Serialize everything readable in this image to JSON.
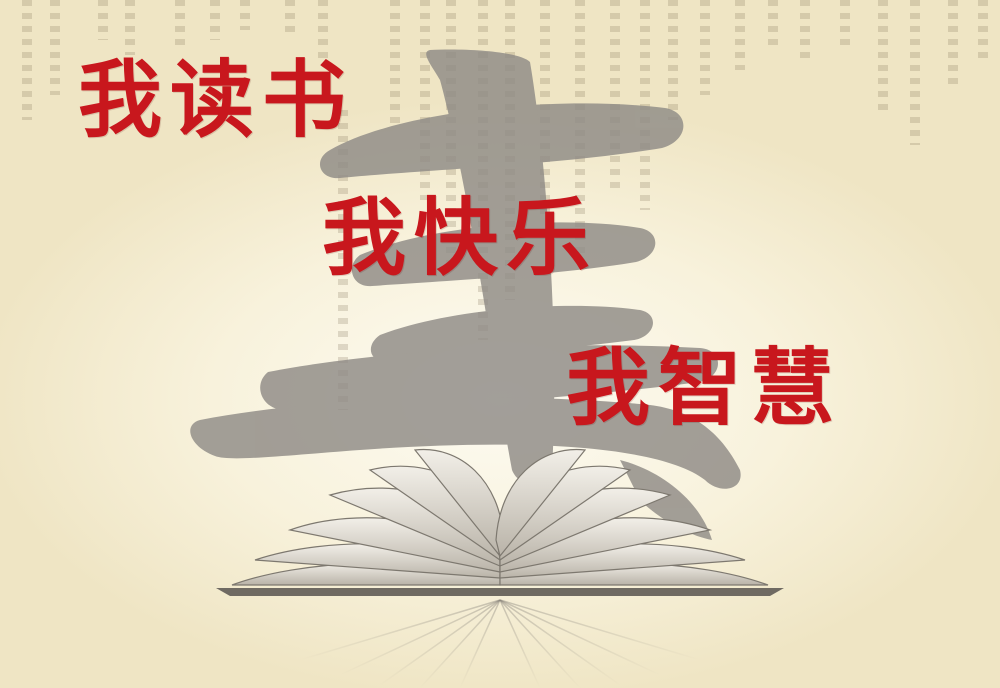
{
  "slogan": {
    "line1": "我读书",
    "line2": "我快乐",
    "line3": "我智慧"
  },
  "colors": {
    "slogan_red": "#c8171d",
    "parchment": "#f8f2dc",
    "brush_gray": "#8f8b86"
  },
  "images": {
    "background_calligraphy": "calligraphy-shu-character",
    "book": "open-book-icon"
  }
}
